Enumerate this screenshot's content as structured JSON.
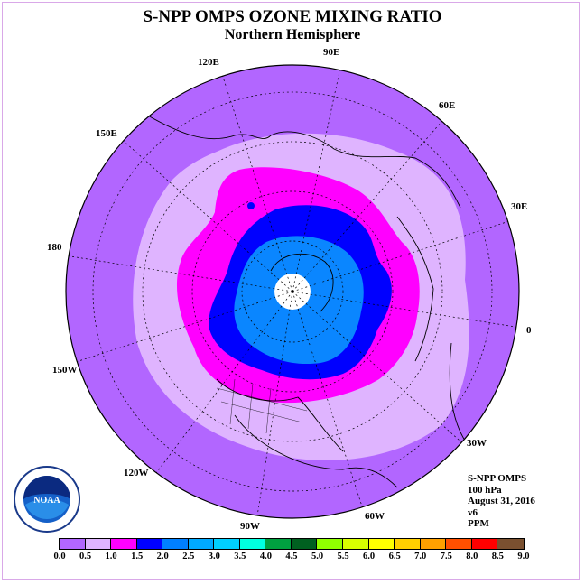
{
  "title": "S-NPP OMPS OZONE MIXING RATIO",
  "subtitle": "Northern Hemisphere",
  "longitude_labels": [
    "90E",
    "60E",
    "30E",
    "0",
    "30W",
    "60W",
    "90W",
    "120W",
    "150W",
    "180",
    "150E",
    "120E"
  ],
  "info": {
    "instrument": "S-NPP OMPS",
    "level": "100 hPa",
    "date": "August 31, 2016",
    "version": "v6",
    "units": "PPM"
  },
  "logo": {
    "text": "NOAA",
    "icon": "noaa-logo-icon"
  },
  "colorbar": {
    "ticks": [
      "0.0",
      "0.5",
      "1.0",
      "1.5",
      "2.0",
      "2.5",
      "3.0",
      "3.5",
      "4.0",
      "4.5",
      "5.0",
      "5.5",
      "6.0",
      "6.5",
      "7.0",
      "7.5",
      "8.0",
      "8.5",
      "9.0"
    ],
    "colors": [
      "#b266ff",
      "#dfb4ff",
      "#ff00ff",
      "#0000ff",
      "#0080ff",
      "#00aaff",
      "#00d0ff",
      "#00ffe0",
      "#00a040",
      "#006020",
      "#90ff00",
      "#d8ff00",
      "#ffff00",
      "#ffd000",
      "#ffa000",
      "#ff5000",
      "#ff0000",
      "#7a5030"
    ]
  },
  "map_fields": {
    "outer_band": "0.0-0.5",
    "mid_band": "0.5-1.0",
    "magenta_band": "1.0-1.5",
    "blue_band": "1.5-2.0",
    "light_blue_band": "2.0-2.5",
    "pole_missing": "no data"
  }
}
